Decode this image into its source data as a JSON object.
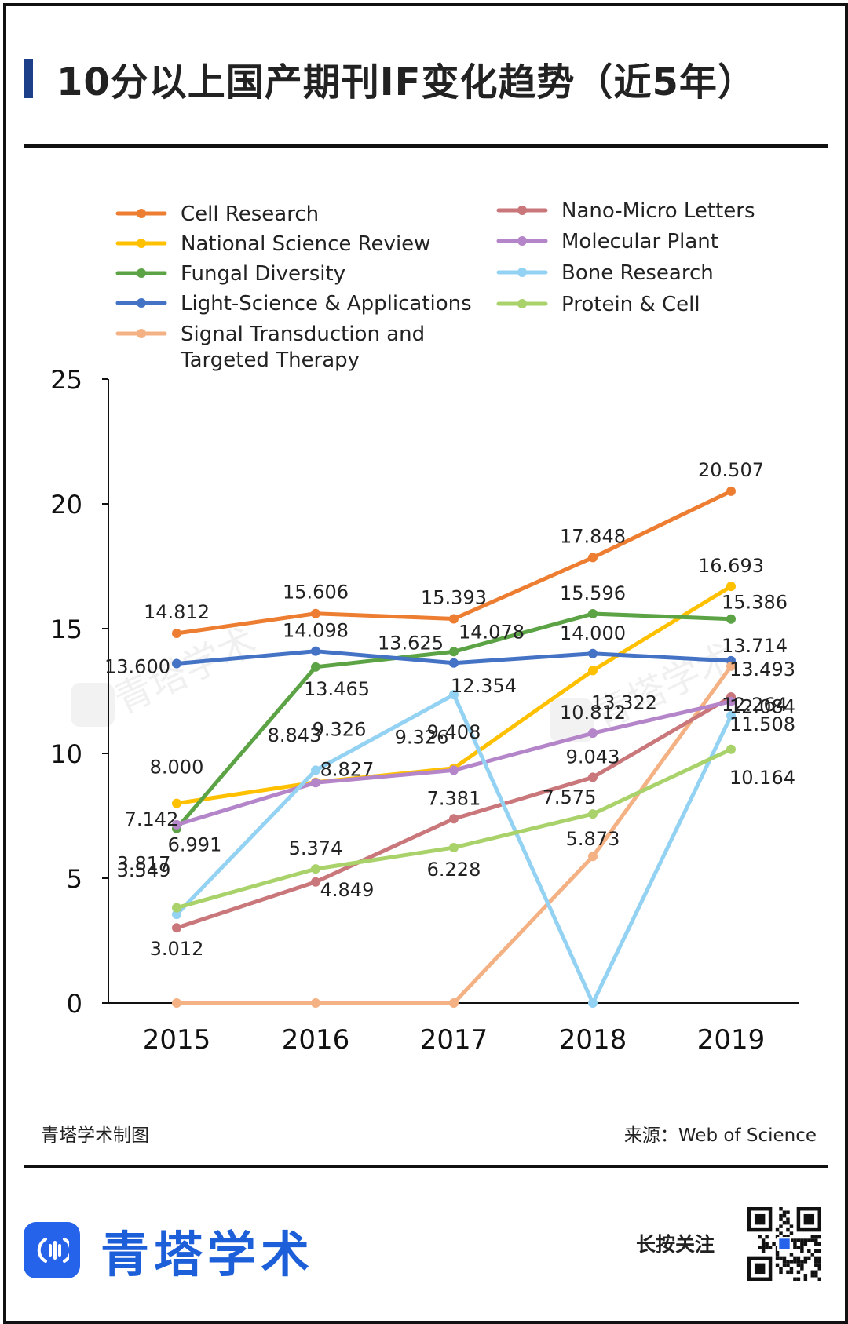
{
  "header": {
    "title": "10分以上国产期刊IF变化趋势（近5年）"
  },
  "footer": {
    "left": "青塔学术制图",
    "right": "来源：Web of Science"
  },
  "brand": {
    "name": "青塔学术",
    "follow": "长按关注",
    "logo_icon": "sound-wave-icon",
    "qr_icon": "qr-code-icon"
  },
  "watermark": "青塔学术",
  "chart_data": {
    "type": "line",
    "x": [
      "2015",
      "2016",
      "2017",
      "2018",
      "2019"
    ],
    "ylim": [
      0,
      25
    ],
    "yticks": [
      "0",
      "5",
      "10",
      "15",
      "20",
      "25"
    ],
    "legend_position": "top",
    "series": [
      {
        "name": "Cell Research",
        "color": "#ed7d31",
        "values": [
          14.812,
          15.606,
          15.393,
          17.848,
          20.507
        ],
        "labels": [
          "14.812",
          "15.606",
          "15.393",
          "17.848",
          "20.507"
        ]
      },
      {
        "name": "National Science Review",
        "color": "#ffc000",
        "values": [
          8.0,
          8.843,
          9.408,
          13.322,
          16.693
        ],
        "labels": [
          "8.000",
          "8.843",
          "9.408",
          "13.322",
          "16.693"
        ]
      },
      {
        "name": "Fungal Diversity",
        "color": "#5ba345",
        "values": [
          6.991,
          13.465,
          14.078,
          15.596,
          15.386
        ],
        "labels": [
          "6.991",
          "13.465",
          "14.078",
          "15.596",
          "15.386"
        ]
      },
      {
        "name": "Light-Science & Applications",
        "color": "#4472c4",
        "values": [
          13.6,
          14.098,
          13.625,
          14.0,
          13.714
        ],
        "labels": [
          "13.600",
          "14.098",
          "13.625",
          "14.000",
          "13.714"
        ]
      },
      {
        "name": "Signal Transduction and Targeted Therapy",
        "color": "#f4b183",
        "values": [
          0,
          0,
          0,
          5.873,
          13.493
        ],
        "labels": [
          "",
          "",
          "",
          "5.873",
          "13.493"
        ]
      },
      {
        "name": "Nano-Micro Letters",
        "color": "#c9777a",
        "values": [
          3.012,
          4.849,
          7.381,
          9.043,
          12.264
        ],
        "labels": [
          "3.012",
          "4.849",
          "7.381",
          "9.043",
          "12.264"
        ]
      },
      {
        "name": "Molecular Plant",
        "color": "#b585c9",
        "values": [
          7.142,
          8.827,
          9.326,
          10.812,
          12.084
        ],
        "labels": [
          "7.142",
          "8.827",
          "9.326",
          "10.812",
          "12.084"
        ]
      },
      {
        "name": "Bone Research",
        "color": "#93d2f2",
        "values": [
          3.549,
          9.326,
          12.354,
          0,
          11.508
        ],
        "labels": [
          "3.549",
          "9.326",
          "12.354",
          "",
          "11.508"
        ]
      },
      {
        "name": "Protein & Cell",
        "color": "#a9d26b",
        "values": [
          3.817,
          5.374,
          6.228,
          7.575,
          10.164
        ],
        "labels": [
          "3.817",
          "5.374",
          "6.228",
          "7.575",
          "10.164"
        ]
      }
    ]
  }
}
